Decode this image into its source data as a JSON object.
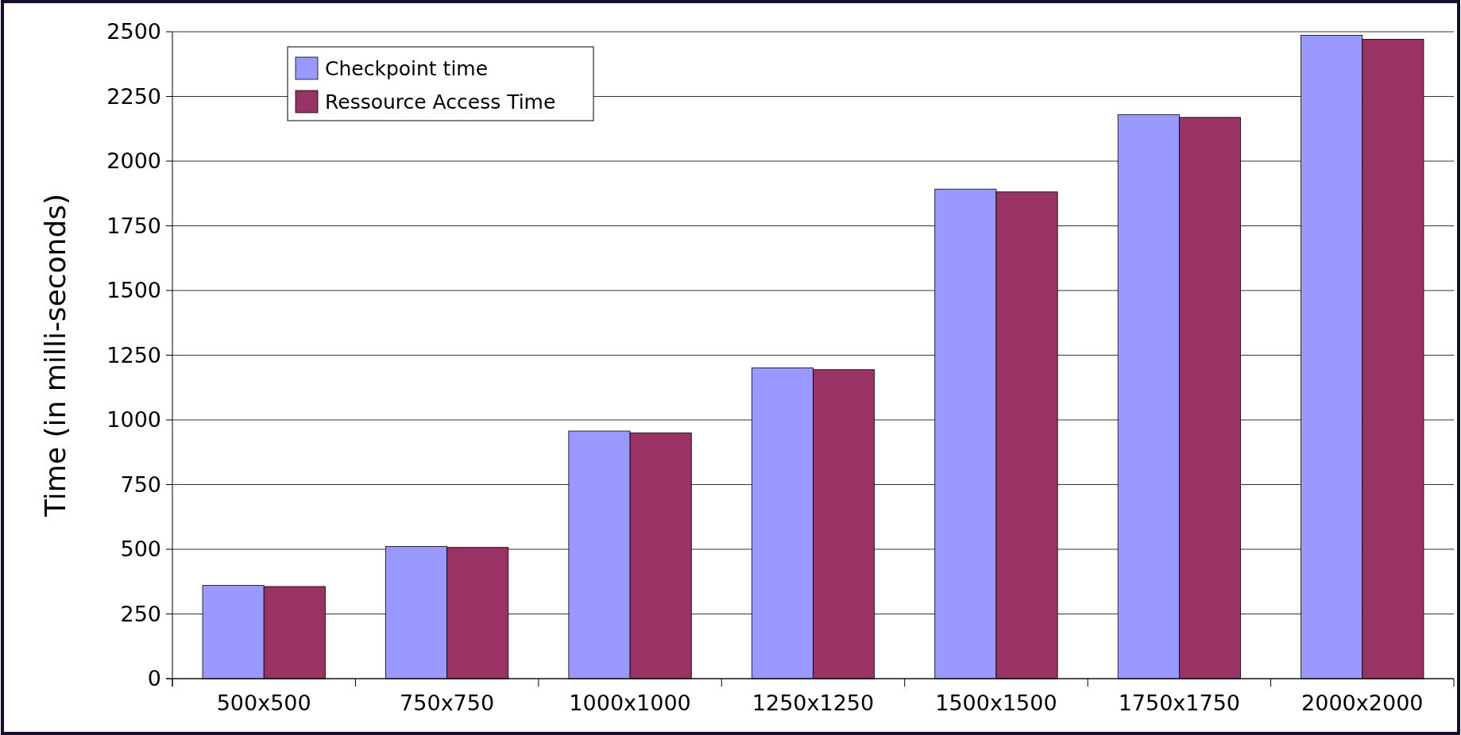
{
  "chart_data": {
    "type": "bar",
    "ylabel": "Time (in milli-seconds)",
    "categories": [
      "500x500",
      "750x750",
      "1000x1000",
      "1250x1250",
      "1500x1500",
      "1750x1750",
      "2000x2000"
    ],
    "series": [
      {
        "name": "Checkpoint time",
        "color": "#9999ff",
        "values": [
          360,
          511,
          957,
          1201,
          1892,
          2180,
          2486
        ]
      },
      {
        "name": "Ressource Access Time",
        "color": "#993366",
        "values": [
          356,
          507,
          950,
          1194,
          1881,
          2169,
          2471
        ]
      }
    ],
    "ylim": [
      0,
      2500
    ],
    "yticks": [
      0,
      250,
      500,
      750,
      1000,
      1250,
      1500,
      1750,
      2000,
      2250,
      2500
    ],
    "grid": "y",
    "legend": "top left"
  }
}
